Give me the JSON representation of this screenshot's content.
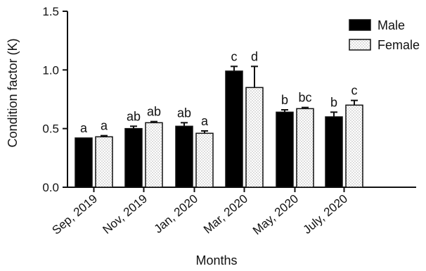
{
  "chart_data": {
    "type": "bar",
    "title": "",
    "xlabel": "Months",
    "ylabel": "Condition factor (K)",
    "ylim": [
      0,
      1.5
    ],
    "yticks": [
      "0.0",
      "0.5",
      "1.0",
      "1.5"
    ],
    "categories": [
      "Sep, 2019",
      "Nov, 2019",
      "Jan, 2020",
      "Mar, 2020",
      "May, 2020",
      "July, 2020"
    ],
    "legend_position": "top-right",
    "series": [
      {
        "name": "Male",
        "fill": "solid-black",
        "values": [
          0.42,
          0.5,
          0.52,
          0.99,
          0.64,
          0.6
        ],
        "errors": [
          0.0,
          0.02,
          0.03,
          0.04,
          0.02,
          0.04
        ],
        "labels": [
          "a",
          "ab",
          "ab",
          "c",
          "b",
          "b"
        ]
      },
      {
        "name": "Female",
        "fill": "dotted-white",
        "values": [
          0.43,
          0.55,
          0.46,
          0.85,
          0.67,
          0.7
        ],
        "errors": [
          0.01,
          0.01,
          0.02,
          0.18,
          0.01,
          0.04
        ],
        "labels": [
          "a",
          "ab",
          "a",
          "d",
          "bc",
          "c"
        ]
      }
    ]
  }
}
